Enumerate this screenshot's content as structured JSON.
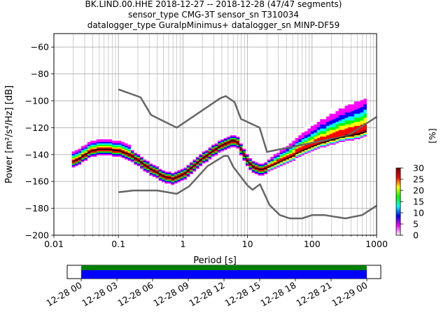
{
  "title_lines": [
    "BK.LIND.00.HHE   2018-12-27 -- 2018-12-28  (47/47 segments)",
    "sensor_type CMG-3T sensor_sn T310034",
    "datalogger_type GuralpMinimus+ datalogger_sn MINP-DF59"
  ],
  "chart_data": {
    "type": "heatmap",
    "xlabel": "Period [s]",
    "ylabel": "Power [m²/s⁴/Hz] [dB]",
    "xscale": "log",
    "xlim": [
      0.01,
      1000
    ],
    "ylim": [
      -200,
      -50
    ],
    "x_ticks": [
      0.01,
      0.1,
      1,
      10,
      100,
      1000
    ],
    "x_tick_labels": [
      "0.01",
      "0.1",
      "1",
      "10",
      "100",
      "1000"
    ],
    "y_ticks": [
      -60,
      -80,
      -100,
      -120,
      -140,
      -160,
      -180,
      -200
    ],
    "y_tick_labels": [
      "−60",
      "−80",
      "−100",
      "−120",
      "−140",
      "−160",
      "−180",
      "−200"
    ],
    "grid": true,
    "series": [
      {
        "role": "high-noise-model",
        "color": "#666666",
        "x": [
          0.1,
          0.22,
          0.32,
          0.8,
          3.8,
          4.6,
          6.3,
          7.9,
          15.4,
          20,
          354.8,
          1000
        ],
        "y": [
          -91.5,
          -97.4,
          -110.5,
          -120,
          -98,
          -96.5,
          -101,
          -113.5,
          -120,
          -138,
          -126,
          -112
        ]
      },
      {
        "role": "low-noise-model",
        "color": "#666666",
        "x": [
          0.1,
          0.17,
          0.4,
          0.8,
          1.24,
          2.4,
          4.3,
          5,
          6,
          10,
          12,
          15.6,
          21.9,
          31.6,
          45,
          70,
          101,
          154,
          328,
          600,
          1000
        ],
        "y": [
          -168,
          -166.7,
          -166.7,
          -169.2,
          -163.7,
          -148.6,
          -141.1,
          -141.1,
          -149,
          -163,
          -166.2,
          -162.1,
          -177.5,
          -185,
          -187.5,
          -187.5,
          -185,
          -185,
          -187.5,
          -185,
          -178
        ]
      },
      {
        "role": "mode",
        "color": "#000000",
        "x": [
          0.02,
          0.025,
          0.03,
          0.04,
          0.05,
          0.07,
          0.1,
          0.15,
          0.2,
          0.3,
          0.5,
          0.7,
          1,
          1.5,
          2,
          3,
          4,
          5,
          6,
          7,
          8,
          10,
          13,
          16,
          20,
          25,
          30,
          40,
          50,
          70,
          100,
          150,
          200,
          300,
          500,
          700
        ],
        "y": [
          -145,
          -143,
          -140,
          -137,
          -136,
          -136,
          -137,
          -140,
          -144,
          -150,
          -156,
          -158,
          -155,
          -148,
          -143,
          -137,
          -133,
          -131,
          -129,
          -131,
          -136,
          -145,
          -150,
          -151,
          -150,
          -148,
          -146,
          -143,
          -141,
          -137,
          -134,
          -131,
          -129,
          -127,
          -125,
          -123
        ]
      }
    ],
    "colorbar": {
      "label": "[%]",
      "range": [
        0,
        30
      ],
      "ticks": [
        0,
        5,
        10,
        15,
        20,
        25,
        30
      ],
      "colors": [
        "#ffffff",
        "#ff00ff",
        "#0000ff",
        "#00ffff",
        "#00ff00",
        "#ffff00",
        "#ff0000",
        "#800000"
      ]
    },
    "timeline": {
      "tick_labels": [
        "12-28 00",
        "12-28 03",
        "12-28 06",
        "12-28 09",
        "12-28 12",
        "12-28 15",
        "12-28 18",
        "12-28 21",
        "12-29 00"
      ],
      "bars": [
        {
          "name": "data-coverage",
          "color": "#008000"
        },
        {
          "name": "psd-coverage",
          "color": "#0000ff"
        }
      ]
    }
  }
}
